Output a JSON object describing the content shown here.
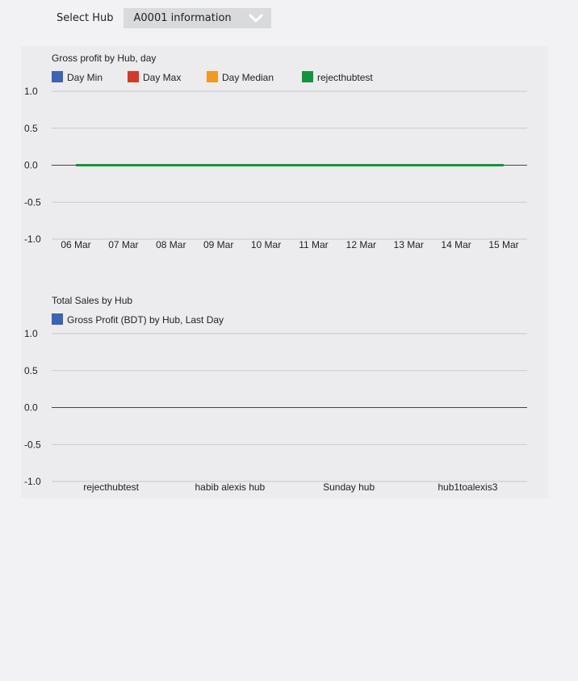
{
  "hub_selector": {
    "label": "Select Hub",
    "selected": "A0001 information"
  },
  "chart_data": [
    {
      "type": "line",
      "title": "Gross profit by Hub, day",
      "xlabel": "",
      "ylabel": "",
      "categories": [
        "06 Mar",
        "07 Mar",
        "08 Mar",
        "09 Mar",
        "10 Mar",
        "11 Mar",
        "12 Mar",
        "13 Mar",
        "14 Mar",
        "15 Mar"
      ],
      "y_ticks": [
        "1.0",
        "0.5",
        "0.0",
        "-0.5",
        "-1.0"
      ],
      "ylim": [
        -1,
        1
      ],
      "grid": true,
      "legend_position": "top-left",
      "series": [
        {
          "name": "Day Min",
          "color": "#3b63b8",
          "values": [
            0,
            0,
            0,
            0,
            0,
            0,
            0,
            0,
            0,
            0
          ]
        },
        {
          "name": "Day Max",
          "color": "#d33b27",
          "values": [
            0,
            0,
            0,
            0,
            0,
            0,
            0,
            0,
            0,
            0
          ]
        },
        {
          "name": "Day Median",
          "color": "#f29a1e",
          "values": [
            0,
            0,
            0,
            0,
            0,
            0,
            0,
            0,
            0,
            0
          ]
        },
        {
          "name": "rejecthubtest",
          "color": "#15943d",
          "values": [
            0,
            0,
            0,
            0,
            0,
            0,
            0,
            0,
            0,
            0
          ]
        }
      ]
    },
    {
      "type": "bar",
      "title": "Total Sales by Hub",
      "xlabel": "",
      "ylabel": "",
      "categories": [
        "rejecthubtest",
        "habib alexis hub",
        "Sunday hub",
        "hub1toalexis3"
      ],
      "y_ticks": [
        "1.0",
        "0.5",
        "0.0",
        "-0.5",
        "-1.0"
      ],
      "ylim": [
        -1,
        1
      ],
      "grid": true,
      "legend_position": "top-left",
      "series": [
        {
          "name": "Gross Profit (BDT) by Hub, Last Day",
          "color": "#3b63b8",
          "values": [
            0,
            0,
            0,
            0
          ]
        }
      ]
    }
  ]
}
